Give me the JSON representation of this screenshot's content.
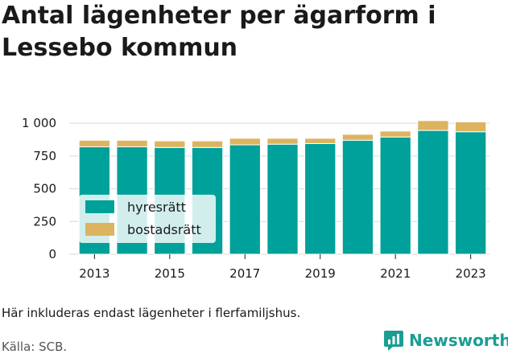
{
  "title": "Antal lägenheter per ägarform i Lessebo kommun",
  "note": "Här inkluderas endast lägenheter i flerfamiljshus.",
  "source": "Källa: SCB.",
  "brand": {
    "name": "Newsworthy",
    "icon": "newsworthy-logo-icon",
    "color": "#1a9e92"
  },
  "chart_data": {
    "type": "bar",
    "stacked": true,
    "categories": [
      "2013",
      "2014",
      "2015",
      "2016",
      "2017",
      "2018",
      "2019",
      "2020",
      "2021",
      "2022",
      "2023"
    ],
    "x_tick_labels": [
      "2013",
      "",
      "2015",
      "",
      "2017",
      "",
      "2019",
      "",
      "2021",
      "",
      "2023"
    ],
    "series": [
      {
        "name": "hyresrätt",
        "color": "#00a19a",
        "values": [
          820,
          820,
          815,
          815,
          835,
          840,
          845,
          870,
          895,
          945,
          935
        ]
      },
      {
        "name": "bostadsrätt",
        "color": "#dcb45f",
        "values": [
          50,
          50,
          50,
          50,
          50,
          45,
          40,
          45,
          45,
          75,
          75
        ]
      }
    ],
    "ylim": [
      0,
      1050
    ],
    "yticks": [
      0,
      250,
      500,
      750,
      1000
    ],
    "ytick_labels": [
      "0",
      "250",
      "500",
      "750",
      "1 000"
    ],
    "xlabel": "",
    "ylabel": "",
    "grid": "horizontal",
    "legend_position": "bottom-left"
  }
}
